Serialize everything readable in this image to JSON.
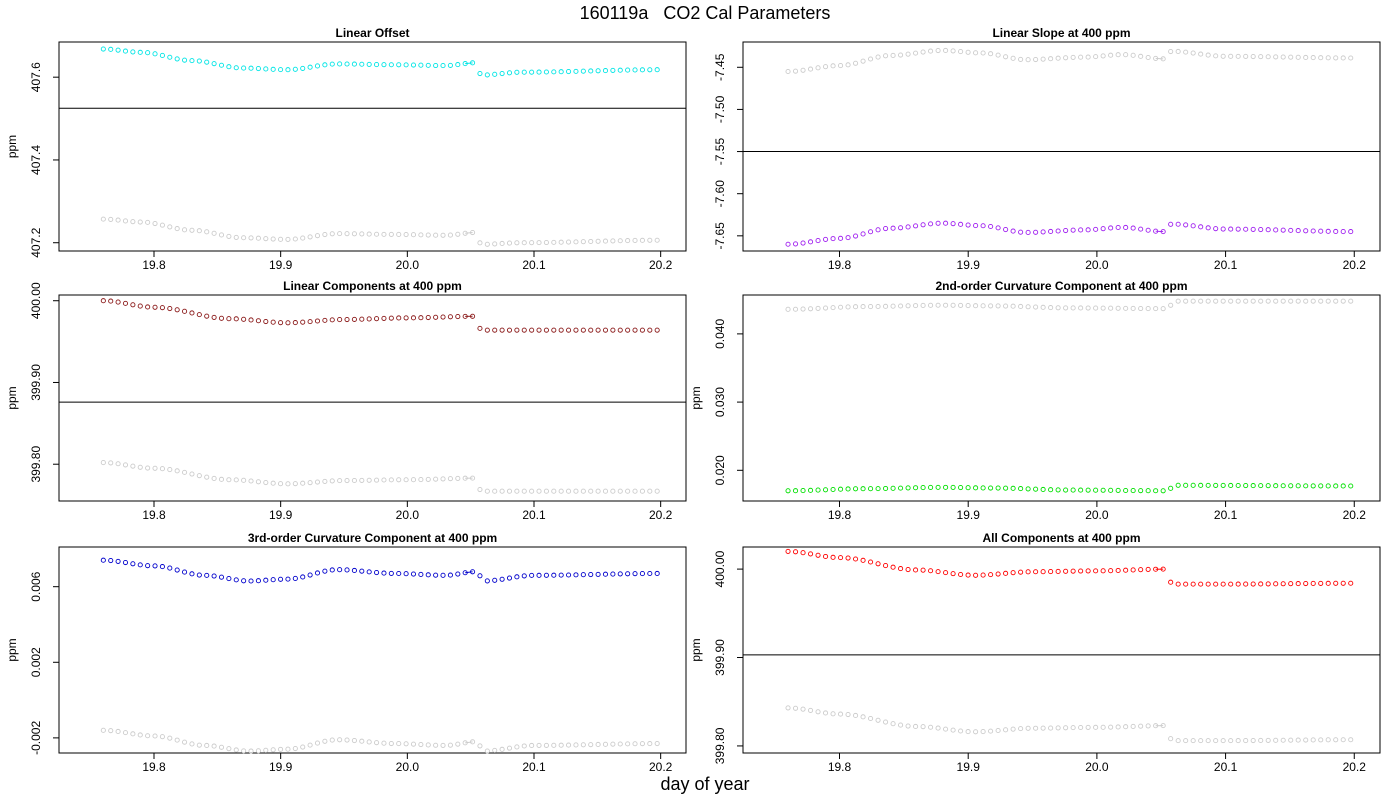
{
  "figure": {
    "title": "160119a   CO2 Cal Parameters",
    "xlabel": "day of year"
  },
  "chart_data": [
    {
      "type": "scatter",
      "title": "Linear Offset",
      "ylabel": "ppm",
      "xlim": [
        19.725,
        20.22
      ],
      "ylim": [
        407.18,
        407.685
      ],
      "xticks": [
        "19.8",
        "19.9",
        "20.0",
        "20.1",
        "20.2"
      ],
      "yticks": [
        "407.2",
        "407.4",
        "407.6"
      ],
      "hline": 407.525,
      "x": {
        "start": 19.76,
        "step": 0.00583,
        "count": 76,
        "break_after": 50
      },
      "series": [
        {
          "color": "#00e5e5",
          "connect_break": true,
          "keyframes": [
            [
              19.76,
              407.668
            ],
            [
              19.79,
              407.66
            ],
            [
              19.83,
              407.64
            ],
            [
              19.87,
              407.622
            ],
            [
              19.905,
              407.618
            ],
            [
              19.945,
              407.632
            ],
            [
              19.99,
              407.63
            ],
            [
              20.03,
              407.628
            ],
            [
              20.055,
              407.635
            ],
            [
              20.058,
              407.605
            ],
            [
              20.09,
              407.612
            ],
            [
              20.2,
              407.618
            ]
          ]
        },
        {
          "color": "#cccccc",
          "connect_break": true,
          "keyframes": [
            [
              19.76,
              407.257
            ],
            [
              19.79,
              407.25
            ],
            [
              19.83,
              407.23
            ],
            [
              19.87,
              407.212
            ],
            [
              19.905,
              407.208
            ],
            [
              19.945,
              407.222
            ],
            [
              19.99,
              407.22
            ],
            [
              20.03,
              407.218
            ],
            [
              20.055,
              407.225
            ],
            [
              20.058,
              407.196
            ],
            [
              20.09,
              407.2
            ],
            [
              20.2,
              407.206
            ]
          ]
        }
      ]
    },
    {
      "type": "scatter",
      "title": "Linear Slope at 400 ppm",
      "ylabel": "",
      "xlim": [
        19.725,
        20.22
      ],
      "ylim": [
        -7.668,
        -7.42
      ],
      "xticks": [
        "19.8",
        "19.9",
        "20.0",
        "20.1",
        "20.2"
      ],
      "yticks": [
        "-7.45",
        "-7.50",
        "-7.55",
        "-7.60",
        "-7.65"
      ],
      "hline": -7.55,
      "x": {
        "start": 19.76,
        "step": 0.00583,
        "count": 76,
        "break_after": 50
      },
      "series": [
        {
          "color": "#cccccc",
          "connect_break": true,
          "keyframes": [
            [
              19.76,
              -7.455
            ],
            [
              19.8,
              -7.448
            ],
            [
              19.84,
              -7.436
            ],
            [
              19.88,
              -7.43
            ],
            [
              19.91,
              -7.433
            ],
            [
              19.945,
              -7.441
            ],
            [
              19.99,
              -7.438
            ],
            [
              20.02,
              -7.435
            ],
            [
              20.052,
              -7.44
            ],
            [
              20.058,
              -7.431
            ],
            [
              20.1,
              -7.437
            ],
            [
              20.2,
              -7.439
            ]
          ]
        },
        {
          "color": "#a020f0",
          "connect_break": true,
          "keyframes": [
            [
              19.76,
              -7.66
            ],
            [
              19.8,
              -7.653
            ],
            [
              19.84,
              -7.641
            ],
            [
              19.88,
              -7.635
            ],
            [
              19.91,
              -7.638
            ],
            [
              19.945,
              -7.646
            ],
            [
              19.99,
              -7.643
            ],
            [
              20.02,
              -7.64
            ],
            [
              20.052,
              -7.645
            ],
            [
              20.058,
              -7.636
            ],
            [
              20.1,
              -7.642
            ],
            [
              20.2,
              -7.645
            ]
          ]
        }
      ]
    },
    {
      "type": "scatter",
      "title": "Linear Components at 400 ppm",
      "ylabel": "ppm",
      "xlim": [
        19.725,
        20.22
      ],
      "ylim": [
        399.755,
        400.007
      ],
      "xticks": [
        "19.8",
        "19.9",
        "20.0",
        "20.1",
        "20.2"
      ],
      "yticks": [
        "399.80",
        "399.90",
        "400.00"
      ],
      "hline": 399.876,
      "x": {
        "start": 19.76,
        "step": 0.00583,
        "count": 76,
        "break_after": 50
      },
      "series": [
        {
          "color": "#8b1a1a",
          "connect_break": true,
          "keyframes": [
            [
              19.76,
              400.0
            ],
            [
              19.8,
              399.992
            ],
            [
              19.86,
              399.978
            ],
            [
              19.905,
              399.973
            ],
            [
              19.95,
              399.977
            ],
            [
              20.0,
              399.979
            ],
            [
              20.055,
              399.981
            ],
            [
              20.058,
              399.964
            ],
            [
              20.1,
              399.964
            ],
            [
              20.2,
              399.964
            ]
          ]
        },
        {
          "color": "#cccccc",
          "connect_break": true,
          "keyframes": [
            [
              19.76,
              399.802
            ],
            [
              19.8,
              399.795
            ],
            [
              19.86,
              399.781
            ],
            [
              19.905,
              399.776
            ],
            [
              19.95,
              399.78
            ],
            [
              20.0,
              399.781
            ],
            [
              20.055,
              399.783
            ],
            [
              20.058,
              399.767
            ],
            [
              20.1,
              399.767
            ],
            [
              20.2,
              399.767
            ]
          ]
        }
      ]
    },
    {
      "type": "scatter",
      "title": "2nd-order Curvature Component at 400 ppm",
      "ylabel": "ppm",
      "xlim": [
        19.725,
        20.22
      ],
      "ylim": [
        0.0155,
        0.0457
      ],
      "xticks": [
        "19.8",
        "19.9",
        "20.0",
        "20.1",
        "20.2"
      ],
      "yticks": [
        "0.020",
        "0.030",
        "0.040"
      ],
      "x": {
        "start": 19.76,
        "step": 0.00583,
        "count": 76,
        "break_after": 50
      },
      "series": [
        {
          "color": "#cccccc",
          "connect_break": false,
          "keyframes": [
            [
              19.76,
              0.0436
            ],
            [
              19.82,
              0.044
            ],
            [
              19.88,
              0.0442
            ],
            [
              19.92,
              0.0441
            ],
            [
              19.98,
              0.0438
            ],
            [
              20.055,
              0.0437
            ],
            [
              20.06,
              0.0448
            ],
            [
              20.2,
              0.0448
            ]
          ]
        },
        {
          "color": "#00e000",
          "connect_break": false,
          "keyframes": [
            [
              19.76,
              0.017
            ],
            [
              19.82,
              0.0173
            ],
            [
              19.88,
              0.0175
            ],
            [
              19.92,
              0.0174
            ],
            [
              19.98,
              0.0171
            ],
            [
              20.055,
              0.017
            ],
            [
              20.06,
              0.0178
            ],
            [
              20.2,
              0.0177
            ]
          ]
        }
      ]
    },
    {
      "type": "scatter",
      "title": "3rd-order Curvature Component at 400 ppm",
      "ylabel": "ppm",
      "xlim": [
        19.725,
        20.22
      ],
      "ylim": [
        -0.0028,
        0.0081
      ],
      "xticks": [
        "19.8",
        "19.9",
        "20.0",
        "20.1",
        "20.2"
      ],
      "yticks": [
        "-0.002",
        "0.002",
        "0.006"
      ],
      "x": {
        "start": 19.76,
        "step": 0.00583,
        "count": 76,
        "break_after": 50
      },
      "series": [
        {
          "color": "#0000cc",
          "connect_break": true,
          "keyframes": [
            [
              19.76,
              0.0074
            ],
            [
              19.8,
              0.0071
            ],
            [
              19.84,
              0.0066
            ],
            [
              19.875,
              0.0063
            ],
            [
              19.905,
              0.0064
            ],
            [
              19.945,
              0.0069
            ],
            [
              19.99,
              0.0067
            ],
            [
              20.03,
              0.0066
            ],
            [
              20.055,
              0.0068
            ],
            [
              20.06,
              0.0063
            ],
            [
              20.1,
              0.0066
            ],
            [
              20.2,
              0.0067
            ]
          ]
        },
        {
          "color": "#cccccc",
          "connect_break": true,
          "keyframes": [
            [
              19.76,
              -0.0016
            ],
            [
              19.8,
              -0.0019
            ],
            [
              19.84,
              -0.0024
            ],
            [
              19.875,
              -0.0027
            ],
            [
              19.905,
              -0.0026
            ],
            [
              19.945,
              -0.0021
            ],
            [
              19.99,
              -0.0023
            ],
            [
              20.03,
              -0.0024
            ],
            [
              20.055,
              -0.0022
            ],
            [
              20.06,
              -0.0027
            ],
            [
              20.1,
              -0.0024
            ],
            [
              20.2,
              -0.0023
            ]
          ]
        }
      ]
    },
    {
      "type": "scatter",
      "title": "All Components at 400 ppm",
      "ylabel": "ppm",
      "xlim": [
        19.725,
        20.22
      ],
      "ylim": [
        399.792,
        400.025
      ],
      "xticks": [
        "19.8",
        "19.9",
        "20.0",
        "20.1",
        "20.2"
      ],
      "yticks": [
        "399.80",
        "399.90",
        "400.00"
      ],
      "hline": 399.903,
      "x": {
        "start": 19.76,
        "step": 0.00583,
        "count": 76,
        "break_after": 50
      },
      "series": [
        {
          "color": "#ff0000",
          "connect_break": true,
          "keyframes": [
            [
              19.76,
              400.02
            ],
            [
              19.8,
              400.013
            ],
            [
              19.86,
              399.999
            ],
            [
              19.905,
              399.993
            ],
            [
              19.95,
              399.997
            ],
            [
              20.0,
              399.998
            ],
            [
              20.055,
              400.0
            ],
            [
              20.058,
              399.983
            ],
            [
              20.1,
              399.983
            ],
            [
              20.2,
              399.984
            ]
          ]
        },
        {
          "color": "#cccccc",
          "connect_break": true,
          "keyframes": [
            [
              19.76,
              399.843
            ],
            [
              19.8,
              399.836
            ],
            [
              19.86,
              399.822
            ],
            [
              19.905,
              399.816
            ],
            [
              19.95,
              399.82
            ],
            [
              20.0,
              399.821
            ],
            [
              20.055,
              399.823
            ],
            [
              20.058,
              399.806
            ],
            [
              20.1,
              399.806
            ],
            [
              20.2,
              399.807
            ]
          ]
        }
      ]
    }
  ]
}
